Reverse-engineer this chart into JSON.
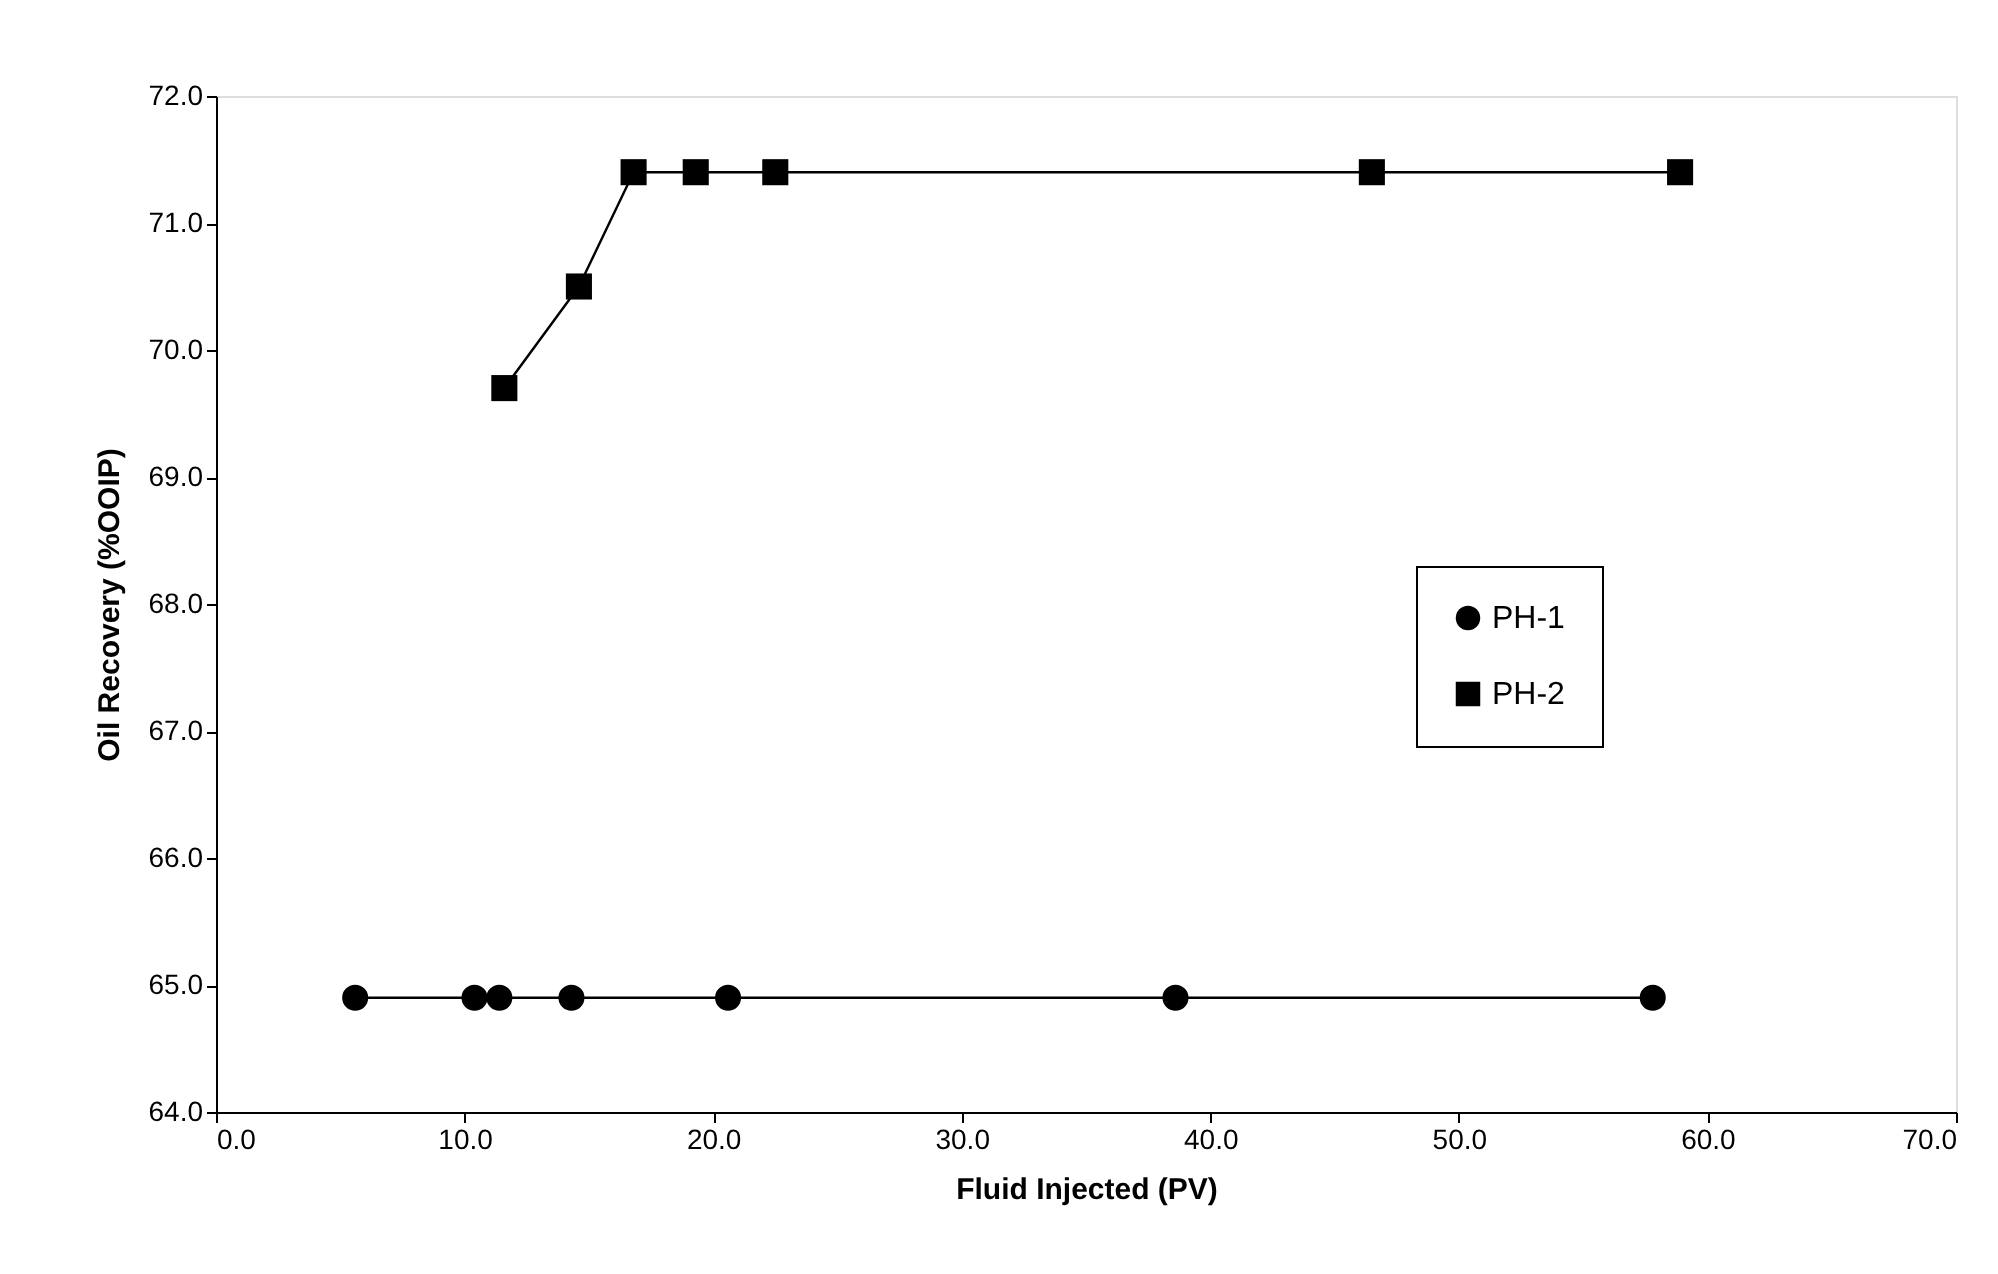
{
  "chart_data": {
    "type": "line",
    "xlabel": "Fluid Injected (PV)",
    "ylabel": "Oil Recovery (%OOIP)",
    "xlim": [
      0,
      70
    ],
    "ylim": [
      64,
      72
    ],
    "xticks": [
      {
        "value": 0,
        "label": "0.0"
      },
      {
        "value": 10,
        "label": "10.0"
      },
      {
        "value": 20,
        "label": "20.0"
      },
      {
        "value": 30,
        "label": "30.0"
      },
      {
        "value": 40,
        "label": "40.0"
      },
      {
        "value": 50,
        "label": "50.0"
      },
      {
        "value": 60,
        "label": "60.0"
      },
      {
        "value": 70,
        "label": "70.0"
      }
    ],
    "yticks": [
      {
        "value": 64,
        "label": "64.0"
      },
      {
        "value": 65,
        "label": "65.0"
      },
      {
        "value": 66,
        "label": "66.0"
      },
      {
        "value": 67,
        "label": "67.0"
      },
      {
        "value": 68,
        "label": "68.0"
      },
      {
        "value": 69,
        "label": "69.0"
      },
      {
        "value": 70,
        "label": "70.0"
      },
      {
        "value": 71,
        "label": "71.0"
      },
      {
        "value": 72,
        "label": "72.0"
      }
    ],
    "grid": false,
    "legend": "right",
    "line_style": "solid",
    "series": [
      {
        "name": "PH-1",
        "color": "#000000",
        "marker": "circle",
        "x": [
          5.6,
          10.4,
          11.4,
          14.3,
          20.6,
          38.6,
          57.8
        ],
        "values": [
          64.9,
          64.9,
          64.9,
          64.9,
          64.9,
          64.9,
          64.9
        ]
      },
      {
        "name": "PH-2",
        "color": "#000000",
        "marker": "square",
        "x": [
          11.6,
          14.6,
          16.8,
          19.3,
          22.5,
          46.5,
          58.9
        ],
        "values": [
          69.7,
          70.5,
          71.4,
          71.4,
          71.4,
          71.4,
          71.4
        ]
      }
    ]
  }
}
